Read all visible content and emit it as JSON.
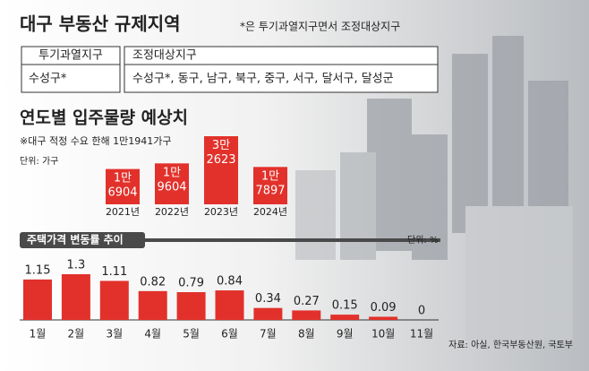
{
  "header": {
    "title": "대구 부동산 규제지역",
    "note": "*은 투기과열지구면서 조정대상지구"
  },
  "zones": [
    {
      "label": "투기과열지구",
      "areas": "수성구*"
    },
    {
      "label": "조정대상지구",
      "areas": "수성구*, 동구, 남구, 북구, 중구, 서구, 달서구, 달성군"
    }
  ],
  "chart_data": [
    {
      "type": "bar",
      "title": "연도별 입주물량 예상치",
      "subtitle": "※대구 적정 수요 한해 1만1941가구",
      "unit": "단위: 가구",
      "categories": [
        "2021년",
        "2022년",
        "2023년",
        "2024년"
      ],
      "values": [
        16904,
        19604,
        32623,
        17897
      ],
      "value_labels": [
        [
          "1만",
          "6904"
        ],
        [
          "1만",
          "9604"
        ],
        [
          "3만",
          "2623"
        ],
        [
          "1만",
          "7897"
        ]
      ],
      "color": "#e2312b"
    },
    {
      "type": "bar",
      "title": "주택가격 변동률 추이",
      "unit": "단위: %",
      "categories": [
        "1월",
        "2월",
        "3월",
        "4월",
        "5월",
        "6월",
        "7월",
        "8월",
        "9월",
        "10월",
        "11월"
      ],
      "values": [
        1.15,
        1.3,
        1.11,
        0.82,
        0.79,
        0.84,
        0.34,
        0.27,
        0.15,
        0.09,
        0
      ],
      "color": "#e2312b"
    }
  ],
  "source": "자료: 아실, 한국부동산원, 국토부"
}
